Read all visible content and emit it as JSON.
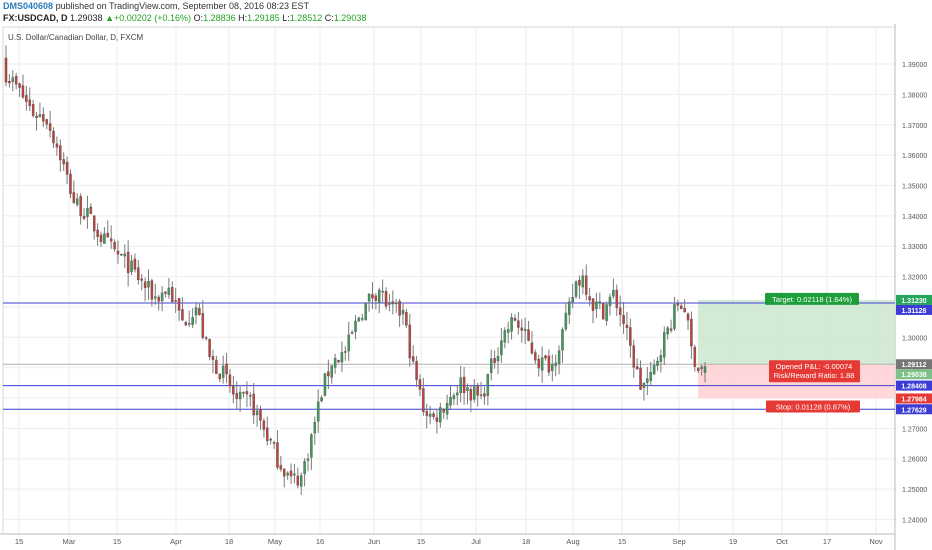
{
  "header": {
    "user": "DMS040608",
    "published_text": "published on TradingView.com, September 08, 2016 08:23 EST",
    "symbol": "FX:USDCAD, D",
    "last": "1.29038",
    "change": "+0.00202 (+0.16%)",
    "o_label": "O:",
    "o": "1.28836",
    "h_label": "H:",
    "h": "1.29185",
    "l_label": "L:",
    "l": "1.28512",
    "c_label": "C:",
    "c": "1.29038"
  },
  "chart_data": {
    "type": "candlestick",
    "title": "U.S. Dollar/Canadian Dollar, D, FXCM",
    "ylim": [
      1.2352,
      1.4022
    ],
    "y_ticks": [
      "1.24000",
      "1.25000",
      "1.26000",
      "1.27000",
      "1.28000",
      "1.29000",
      "1.30000",
      "1.31000",
      "1.32000",
      "1.33000",
      "1.34000",
      "1.35000",
      "1.36000",
      "1.37000",
      "1.38000",
      "1.39000"
    ],
    "x_ticks": [
      "15",
      "Mar",
      "15",
      "Apr",
      "18",
      "May",
      "16",
      "Jun",
      "15",
      "Jul",
      "18",
      "Aug",
      "15",
      "Sep",
      "19",
      "Oct",
      "17",
      "Nov"
    ],
    "price_labels": [
      {
        "text": "1.31230",
        "value": 1.3123,
        "color": "#26a65b"
      },
      {
        "text": "1.31128",
        "value": 1.31128,
        "color": "#3d3dd6"
      },
      {
        "text": "1.29112",
        "value": 1.29112,
        "color": "#777777"
      },
      {
        "text": "1.29038",
        "value": 1.29038,
        "color": "#7fbf8a"
      },
      {
        "text": "1.28408",
        "value": 1.28408,
        "color": "#3d3dd6"
      },
      {
        "text": "1.27984",
        "value": 1.27984,
        "color": "#e53935"
      },
      {
        "text": "1.27629",
        "value": 1.27629,
        "color": "#3d3dd6"
      }
    ],
    "horizontal_lines": [
      1.31128,
      1.28408,
      1.27629
    ],
    "position": {
      "entry": 1.29112,
      "target": 1.3123,
      "stop": 1.27984,
      "target_label": "Target: 0.02118 (1.64%)",
      "pnl_label": "Opened P&L: -0.00074",
      "rr_label": "Risk/Reward Ratio: 1.88",
      "stop_label": "Stop: 0.01128 (0.87%)"
    },
    "anchors": [
      [
        0,
        1.387
      ],
      [
        4,
        1.381
      ],
      [
        8,
        1.374
      ],
      [
        12,
        1.372
      ],
      [
        16,
        1.36
      ],
      [
        20,
        1.345
      ],
      [
        24,
        1.34
      ],
      [
        28,
        1.333
      ],
      [
        32,
        1.328
      ],
      [
        36,
        1.324
      ],
      [
        40,
        1.318
      ],
      [
        44,
        1.313
      ],
      [
        48,
        1.316
      ],
      [
        52,
        1.305
      ],
      [
        56,
        1.31
      ],
      [
        60,
        1.293
      ],
      [
        64,
        1.288
      ],
      [
        68,
        1.279
      ],
      [
        72,
        1.279
      ],
      [
        76,
        1.27
      ],
      [
        80,
        1.26
      ],
      [
        84,
        1.253
      ],
      [
        87,
        1.254
      ],
      [
        90,
        1.267
      ],
      [
        93,
        1.282
      ],
      [
        96,
        1.292
      ],
      [
        100,
        1.295
      ],
      [
        104,
        1.307
      ],
      [
        108,
        1.314
      ],
      [
        110,
        1.316
      ],
      [
        113,
        1.309
      ],
      [
        117,
        1.308
      ],
      [
        120,
        1.29
      ],
      [
        123,
        1.277
      ],
      [
        126,
        1.273
      ],
      [
        130,
        1.279
      ],
      [
        134,
        1.285
      ],
      [
        137,
        1.282
      ],
      [
        140,
        1.28
      ],
      [
        143,
        1.29
      ],
      [
        146,
        1.3
      ],
      [
        150,
        1.306
      ],
      [
        153,
        1.3
      ],
      [
        157,
        1.292
      ],
      [
        161,
        1.291
      ],
      [
        165,
        1.305
      ],
      [
        168,
        1.318
      ],
      [
        170,
        1.32
      ],
      [
        173,
        1.311
      ],
      [
        176,
        1.309
      ],
      [
        179,
        1.314
      ],
      [
        182,
        1.305
      ],
      [
        184,
        1.296
      ],
      [
        187,
        1.284
      ],
      [
        190,
        1.286
      ],
      [
        193,
        1.297
      ],
      [
        196,
        1.305
      ],
      [
        198,
        1.311
      ],
      [
        200,
        1.31
      ],
      [
        202,
        1.296
      ],
      [
        204,
        1.29
      ],
      [
        206,
        1.2904
      ]
    ]
  }
}
